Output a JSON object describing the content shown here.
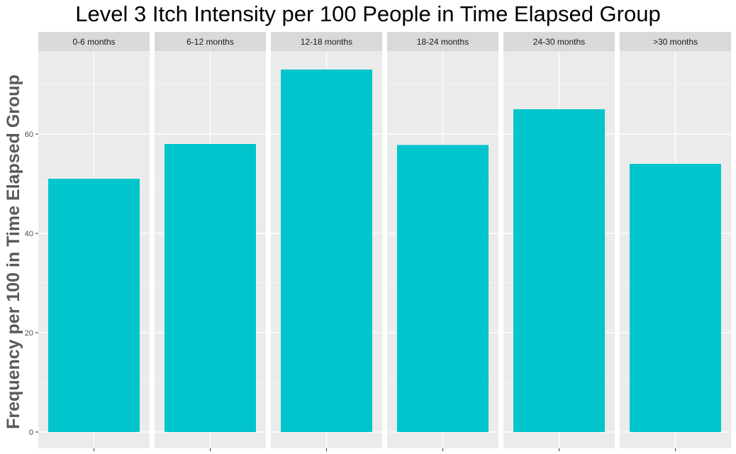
{
  "chart_data": {
    "type": "bar",
    "title": "Level 3 Itch Intensity per 100 People in Time Elapsed Group",
    "ylabel": "Frequency per 100 in Time Elapsed Group",
    "xlabel": "",
    "ylim": [
      0,
      77
    ],
    "y_ticks": [
      0,
      20,
      40,
      60
    ],
    "facets": [
      "0-6 months",
      "6-12 months",
      "12-18 months",
      "18-24 months",
      "24-30 months",
      ">30 months"
    ],
    "values": [
      51,
      58,
      73,
      57.8,
      65,
      54
    ],
    "grid": true,
    "legend": "none",
    "colors": {
      "bar": "#00c5cd",
      "panel": "#ebebeb",
      "strip": "#d9d9d9",
      "grid_major": "#ffffff",
      "grid_minor": "#f5f5f5"
    }
  }
}
